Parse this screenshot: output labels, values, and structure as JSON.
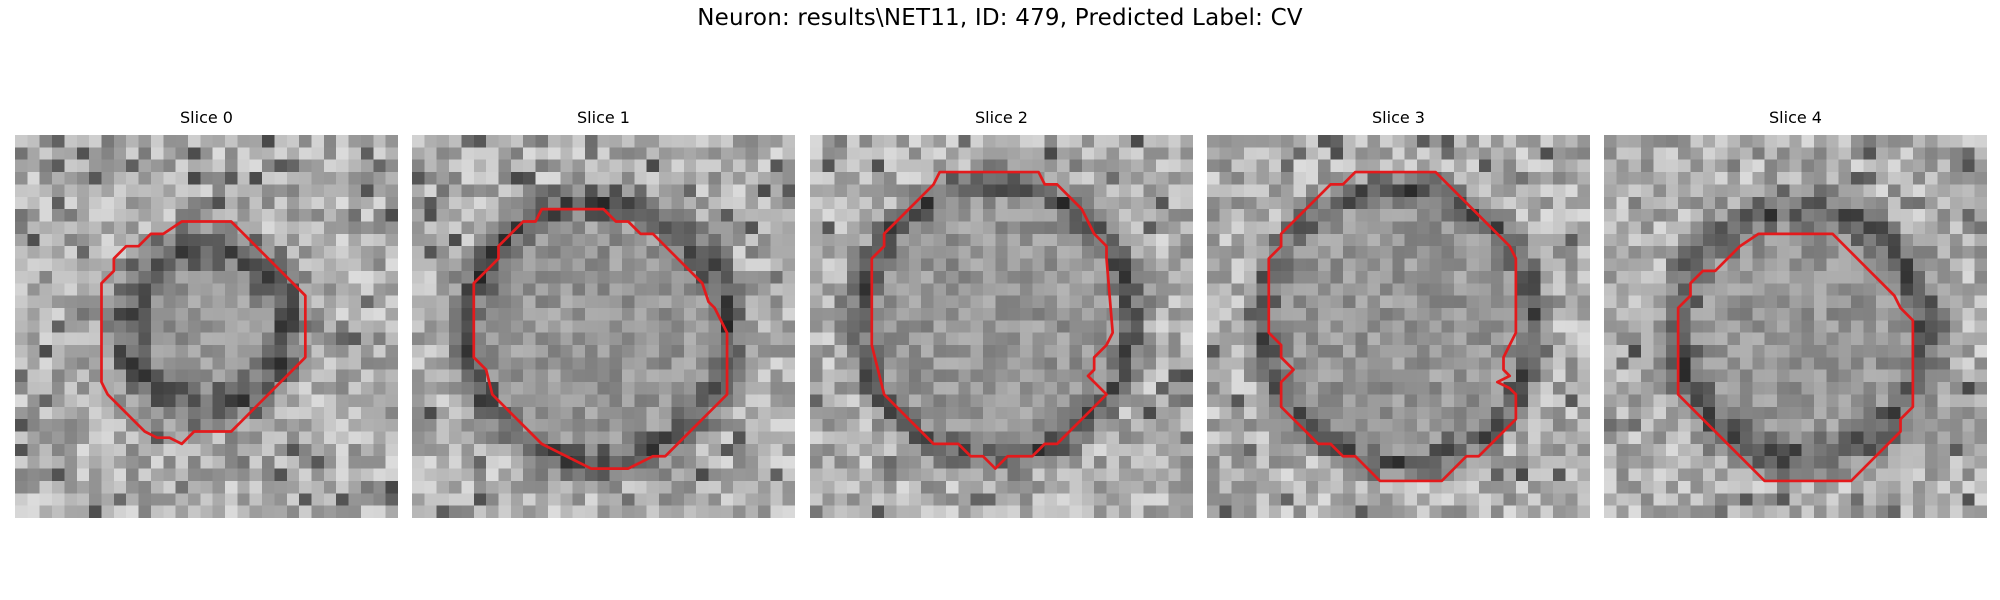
{
  "figure": {
    "title": "Neuron: results\\NET11, ID: 479, Predicted Label: CV"
  },
  "style": {
    "contour_color": "#e31a1c",
    "background": "#ffffff",
    "colormap": "grayscale"
  },
  "panels": [
    {
      "title": "Slice 0",
      "grid": 31,
      "contour": [
        [
          13.5,
          7
        ],
        [
          17.5,
          7
        ],
        [
          18.5,
          8
        ],
        [
          19.5,
          9
        ],
        [
          20.5,
          10
        ],
        [
          21.5,
          11
        ],
        [
          22.5,
          12
        ],
        [
          23.5,
          13
        ],
        [
          23.5,
          18
        ],
        [
          22.5,
          19
        ],
        [
          21.5,
          20
        ],
        [
          20.5,
          21
        ],
        [
          19.5,
          22
        ],
        [
          18.5,
          23
        ],
        [
          17.5,
          24
        ],
        [
          16.5,
          24
        ],
        [
          15.5,
          24
        ],
        [
          14.5,
          24
        ],
        [
          13.5,
          25
        ],
        [
          12.5,
          24.5
        ],
        [
          11.5,
          24.5
        ],
        [
          10.5,
          24
        ],
        [
          9.5,
          23
        ],
        [
          8.5,
          22
        ],
        [
          7.5,
          21
        ],
        [
          7,
          20
        ],
        [
          7,
          15
        ],
        [
          7,
          12
        ],
        [
          8,
          11
        ],
        [
          8,
          10
        ],
        [
          9,
          9
        ],
        [
          10,
          9
        ],
        [
          11,
          8
        ],
        [
          12,
          8
        ]
      ],
      "dark_ring": {
        "cx": 15.5,
        "cy": 15.5,
        "r": 6.5,
        "w": 3
      }
    },
    {
      "title": "Slice 1",
      "grid": 31,
      "contour": [
        [
          10.5,
          6
        ],
        [
          15.5,
          6
        ],
        [
          16.5,
          7
        ],
        [
          17.5,
          7
        ],
        [
          18.5,
          8
        ],
        [
          19.5,
          8
        ],
        [
          20.5,
          9
        ],
        [
          21.5,
          10
        ],
        [
          22.5,
          11
        ],
        [
          23.5,
          12
        ],
        [
          24,
          13.5
        ],
        [
          24.5,
          14
        ],
        [
          25.5,
          16
        ],
        [
          25.5,
          21
        ],
        [
          24.5,
          22
        ],
        [
          23.5,
          23
        ],
        [
          22.5,
          24
        ],
        [
          21.5,
          25
        ],
        [
          20.5,
          26
        ],
        [
          19.5,
          26
        ],
        [
          18.5,
          26.5
        ],
        [
          17.5,
          27
        ],
        [
          14.5,
          27
        ],
        [
          13.5,
          26.5
        ],
        [
          12.5,
          26
        ],
        [
          11.5,
          25.5
        ],
        [
          10.5,
          25
        ],
        [
          9.5,
          24
        ],
        [
          8.5,
          23
        ],
        [
          7.5,
          22
        ],
        [
          6.5,
          21
        ],
        [
          6,
          19
        ],
        [
          5,
          18
        ],
        [
          5,
          12
        ],
        [
          6,
          11
        ],
        [
          7,
          10
        ],
        [
          7,
          9
        ],
        [
          8,
          8
        ],
        [
          9,
          7
        ],
        [
          10,
          7
        ]
      ],
      "dark_ring": {
        "cx": 15,
        "cy": 16,
        "r": 10.5,
        "w": 2.5
      }
    },
    {
      "title": "Slice 2",
      "grid": 31,
      "contour": [
        [
          10.5,
          3
        ],
        [
          18.5,
          3
        ],
        [
          19,
          4
        ],
        [
          20,
          4
        ],
        [
          21,
          5
        ],
        [
          22,
          6
        ],
        [
          22.5,
          7
        ],
        [
          23,
          8
        ],
        [
          24,
          9
        ],
        [
          24,
          10
        ],
        [
          24.5,
          16
        ],
        [
          24,
          17
        ],
        [
          23,
          18
        ],
        [
          23,
          19
        ],
        [
          22.5,
          19.5
        ],
        [
          23,
          20
        ],
        [
          24,
          21
        ],
        [
          23,
          22
        ],
        [
          22,
          23
        ],
        [
          21,
          24
        ],
        [
          20,
          25
        ],
        [
          19,
          25
        ],
        [
          18,
          26
        ],
        [
          16,
          26
        ],
        [
          15,
          27
        ],
        [
          14,
          26
        ],
        [
          13,
          26
        ],
        [
          12,
          25
        ],
        [
          10,
          25
        ],
        [
          9,
          24
        ],
        [
          8,
          23
        ],
        [
          7,
          22
        ],
        [
          6,
          21
        ],
        [
          5.5,
          19
        ],
        [
          5,
          17
        ],
        [
          5,
          10
        ],
        [
          6,
          9
        ],
        [
          6,
          8
        ],
        [
          7,
          7
        ],
        [
          8,
          6
        ],
        [
          9,
          5
        ],
        [
          10,
          4
        ]
      ],
      "dark_ring": {
        "cx": 15,
        "cy": 15,
        "r": 11,
        "w": 2
      }
    },
    {
      "title": "Slice 3",
      "grid": 31,
      "contour": [
        [
          13.5,
          3
        ],
        [
          18.5,
          3
        ],
        [
          19.5,
          4
        ],
        [
          20.5,
          5
        ],
        [
          21.5,
          6
        ],
        [
          22.5,
          7
        ],
        [
          23.5,
          8
        ],
        [
          24.5,
          9
        ],
        [
          25,
          10
        ],
        [
          25,
          15
        ],
        [
          25,
          16
        ],
        [
          24.5,
          17
        ],
        [
          24,
          18
        ],
        [
          24,
          19
        ],
        [
          24.5,
          19.5
        ],
        [
          23.5,
          20
        ],
        [
          24.5,
          20.5
        ],
        [
          25,
          21
        ],
        [
          25,
          23
        ],
        [
          24,
          24
        ],
        [
          23,
          25
        ],
        [
          22,
          26
        ],
        [
          21,
          26
        ],
        [
          20,
          27
        ],
        [
          19,
          28
        ],
        [
          14,
          28
        ],
        [
          13,
          27
        ],
        [
          12,
          26
        ],
        [
          11,
          26
        ],
        [
          10,
          25
        ],
        [
          9,
          25
        ],
        [
          8,
          24
        ],
        [
          7,
          23
        ],
        [
          6,
          22
        ],
        [
          6,
          20
        ],
        [
          7,
          19
        ],
        [
          6,
          18
        ],
        [
          6,
          17
        ],
        [
          5,
          16
        ],
        [
          5,
          10
        ],
        [
          6,
          9
        ],
        [
          6,
          8
        ],
        [
          7,
          7
        ],
        [
          8,
          6
        ],
        [
          9,
          5
        ],
        [
          10,
          4
        ],
        [
          11,
          4
        ],
        [
          12,
          3
        ]
      ],
      "dark_ring": {
        "cx": 15.5,
        "cy": 15.5,
        "r": 11,
        "w": 2
      }
    },
    {
      "title": "Slice 4",
      "grid": 31,
      "contour": [
        [
          12.5,
          8
        ],
        [
          18.5,
          8
        ],
        [
          19.5,
          9
        ],
        [
          20.5,
          10
        ],
        [
          21.5,
          11
        ],
        [
          22.5,
          12
        ],
        [
          23.5,
          13
        ],
        [
          24,
          14
        ],
        [
          25,
          15
        ],
        [
          25,
          22
        ],
        [
          24,
          23
        ],
        [
          24,
          24
        ],
        [
          23,
          25
        ],
        [
          22,
          26
        ],
        [
          21,
          27
        ],
        [
          20,
          28
        ],
        [
          13,
          28
        ],
        [
          12,
          27
        ],
        [
          11,
          26
        ],
        [
          10,
          25
        ],
        [
          9,
          24
        ],
        [
          8,
          23
        ],
        [
          7,
          22
        ],
        [
          6,
          21
        ],
        [
          6,
          14
        ],
        [
          7,
          13
        ],
        [
          7,
          12
        ],
        [
          8,
          11
        ],
        [
          9,
          11
        ],
        [
          10,
          10
        ],
        [
          11,
          9
        ]
      ],
      "dark_ring": {
        "cx": 16,
        "cy": 16,
        "r": 10,
        "w": 2.5
      }
    }
  ]
}
